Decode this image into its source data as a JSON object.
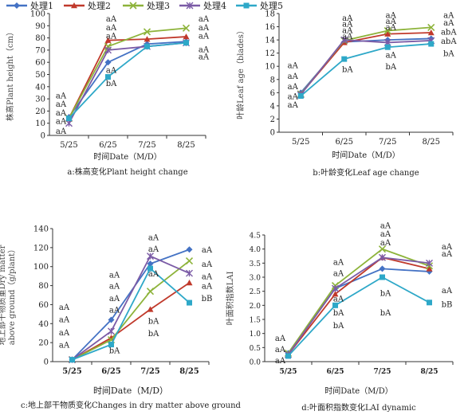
{
  "legend": {
    "series": [
      {
        "name": "处理1",
        "color": "#4472C4",
        "marker": "diamond"
      },
      {
        "name": "处理2",
        "color": "#C0392B",
        "marker": "triangle"
      },
      {
        "name": "处理3",
        "color": "#8DB33A",
        "marker": "x"
      },
      {
        "name": "处理4",
        "color": "#7B5BA6",
        "marker": "star"
      },
      {
        "name": "处理5",
        "color": "#2EA8C8",
        "marker": "square"
      }
    ]
  },
  "chart_data": [
    {
      "id": "a",
      "type": "line",
      "categories": [
        "5/25",
        "6/25",
        "7/25",
        "8/25"
      ],
      "xlabel": "时间Date（M/D）",
      "ylabel": "株高Plant height（cm）",
      "caption": "a:株高变化Plant height change",
      "ylim": [
        0,
        100
      ],
      "yticks": [
        0,
        10,
        20,
        30,
        40,
        50,
        60,
        70,
        80,
        90,
        100
      ],
      "series": [
        {
          "name": "处理1",
          "values": [
            15,
            60,
            75,
            77
          ]
        },
        {
          "name": "处理2",
          "values": [
            14,
            78,
            79,
            81
          ]
        },
        {
          "name": "处理3",
          "values": [
            14,
            73,
            85,
            88
          ]
        },
        {
          "name": "处理4",
          "values": [
            10,
            70,
            73,
            76
          ]
        },
        {
          "name": "处理5",
          "values": [
            14,
            48,
            73,
            76
          ]
        }
      ],
      "annotations": [
        {
          "text": "aA",
          "x": "5/25",
          "y": 33
        },
        {
          "text": "aA",
          "x": "5/25",
          "y": 26
        },
        {
          "text": "aA",
          "x": "5/25",
          "y": 19
        },
        {
          "text": "aA",
          "x": "5/25",
          "y": 12
        },
        {
          "text": "aA",
          "x": "5/25",
          "y": 4
        },
        {
          "text": "aA",
          "x": "6/25",
          "y": 96
        },
        {
          "text": "aA",
          "x": "6/25",
          "y": 89
        },
        {
          "text": "aA",
          "x": "6/25",
          "y": 82
        },
        {
          "text": "aA",
          "x": "6/25",
          "y": 54
        },
        {
          "text": "bA",
          "x": "6/25",
          "y": 43
        },
        {
          "text": "aA",
          "x": "8/25",
          "y": 96
        },
        {
          "text": "aA",
          "x": "8/25",
          "y": 89
        },
        {
          "text": "aA",
          "x": "8/25",
          "y": 82
        },
        {
          "text": "aA",
          "x": "8/25",
          "y": 71
        },
        {
          "text": "aA",
          "x": "8/25",
          "y": 65
        }
      ]
    },
    {
      "id": "b",
      "type": "line",
      "categories": [
        "5/25",
        "6/25",
        "7/25",
        "8/25"
      ],
      "xlabel": "时间Date（M/D）",
      "ylabel": "叶龄Leaf age（blades）",
      "caption": "b:叶龄变化Leaf age change",
      "ylim": [
        0,
        18
      ],
      "yticks": [
        0,
        2,
        4,
        6,
        8,
        10,
        12,
        14,
        16,
        18
      ],
      "series": [
        {
          "name": "处理1",
          "values": [
            6.0,
            13.7,
            14.0,
            14.2
          ]
        },
        {
          "name": "处理2",
          "values": [
            5.8,
            13.6,
            14.9,
            15.1
          ]
        },
        {
          "name": "处理3",
          "values": [
            5.8,
            13.9,
            15.4,
            15.9
          ]
        },
        {
          "name": "处理4",
          "values": [
            5.7,
            14.0,
            13.6,
            13.9
          ]
        },
        {
          "name": "处理5",
          "values": [
            5.5,
            11.1,
            12.9,
            13.4
          ]
        }
      ],
      "annotations": [
        {
          "text": "aA",
          "x": "5/25",
          "y": 10.2
        },
        {
          "text": "aA",
          "x": "5/25",
          "y": 8.6
        },
        {
          "text": "aA",
          "x": "5/25",
          "y": 7.0
        },
        {
          "text": "aA",
          "x": "5/25",
          "y": 5.5
        },
        {
          "text": "aA",
          "x": "5/25",
          "y": 4.2
        },
        {
          "text": "aA",
          "x": "6/25",
          "y": 17.4
        },
        {
          "text": "aA",
          "x": "6/25",
          "y": 16.5
        },
        {
          "text": "aA",
          "x": "6/25",
          "y": 15.5
        },
        {
          "text": "aA",
          "x": "6/25",
          "y": 14.6
        },
        {
          "text": "bA",
          "x": "6/25",
          "y": 9.6
        },
        {
          "text": "aA",
          "x": "7/25",
          "y": 17.8
        },
        {
          "text": "aA",
          "x": "7/25",
          "y": 16.9
        },
        {
          "text": "aA",
          "x": "7/25",
          "y": 16.0
        },
        {
          "text": "aA",
          "x": "7/25",
          "y": 11.8
        },
        {
          "text": "bA",
          "x": "7/25",
          "y": 10.0
        },
        {
          "text": "aA",
          "x": "8/25",
          "y": 17.8
        },
        {
          "text": "aA",
          "x": "8/25",
          "y": 16.7
        },
        {
          "text": "abA",
          "x": "8/25",
          "y": 15.3
        },
        {
          "text": "abA",
          "x": "8/25",
          "y": 13.9
        },
        {
          "text": "bA",
          "x": "8/25",
          "y": 12.0
        }
      ]
    },
    {
      "id": "c",
      "type": "line",
      "categories": [
        "5/25",
        "6/25",
        "7/25",
        "8/25"
      ],
      "xlabel": "时间Date（M/D）",
      "ylabel": "地上部干物质重Dry matter above ground（g/plant）",
      "caption": "c:地上部干物质变化Changes in dry matter above ground",
      "ylim": [
        0,
        140
      ],
      "yticks": [
        0,
        20,
        40,
        60,
        80,
        100,
        120,
        140
      ],
      "series": [
        {
          "name": "处理1",
          "values": [
            2,
            44,
            103,
            118
          ]
        },
        {
          "name": "处理2",
          "values": [
            2,
            25,
            55,
            83
          ]
        },
        {
          "name": "处理3",
          "values": [
            2,
            23,
            74,
            106
          ]
        },
        {
          "name": "处理4",
          "values": [
            2,
            32,
            111,
            93
          ]
        },
        {
          "name": "处理5",
          "values": [
            2,
            18,
            98,
            62
          ]
        }
      ],
      "annotations": [
        {
          "text": "aA",
          "x": "5/25",
          "y": 58
        },
        {
          "text": "aA",
          "x": "5/25",
          "y": 45
        },
        {
          "text": "aA",
          "x": "5/25",
          "y": 31
        },
        {
          "text": "aA",
          "x": "5/25",
          "y": 18
        },
        {
          "text": "aA",
          "x": "6/25",
          "y": 92
        },
        {
          "text": "aA",
          "x": "6/25",
          "y": 80
        },
        {
          "text": "aA",
          "x": "6/25",
          "y": 67
        },
        {
          "text": "aA",
          "x": "6/25",
          "y": 55
        },
        {
          "text": "bA",
          "x": "6/25",
          "y": 12
        },
        {
          "text": "aA",
          "x": "7/25",
          "y": 131
        },
        {
          "text": "aA",
          "x": "7/25",
          "y": 119
        },
        {
          "text": "aA",
          "x": "7/25",
          "y": 93
        },
        {
          "text": "bA",
          "x": "7/25",
          "y": 43
        },
        {
          "text": "bA",
          "x": "7/25",
          "y": 30
        },
        {
          "text": "aA",
          "x": "8/25",
          "y": 118
        },
        {
          "text": "aA",
          "x": "8/25",
          "y": 103
        },
        {
          "text": "aA",
          "x": "8/25",
          "y": 90
        },
        {
          "text": "aA",
          "x": "8/25",
          "y": 80
        },
        {
          "text": "bB",
          "x": "8/25",
          "y": 67
        }
      ]
    },
    {
      "id": "d",
      "type": "line",
      "categories": [
        "5/25",
        "6/25",
        "7/25",
        "8/25"
      ],
      "xlabel": "时间Date（M/D）",
      "ylabel": "叶面积指数LAI",
      "caption": "d:叶面积指数变化LAI dynamic",
      "ylim": [
        0,
        4.5
      ],
      "yticks": [
        "0.0",
        "0.5",
        "1.0",
        "1.5",
        "2.0",
        "2.5",
        "3.0",
        "3.5",
        "4.0",
        "4.5"
      ],
      "series": [
        {
          "name": "处理1",
          "values": [
            0.3,
            2.6,
            3.3,
            3.2
          ]
        },
        {
          "name": "处理2",
          "values": [
            0.25,
            2.4,
            3.7,
            3.3
          ]
        },
        {
          "name": "处理3",
          "values": [
            0.3,
            2.7,
            4.0,
            3.4
          ]
        },
        {
          "name": "处理4",
          "values": [
            0.25,
            2.6,
            3.7,
            3.5
          ]
        },
        {
          "name": "处理5",
          "values": [
            0.2,
            2.0,
            3.0,
            2.1
          ]
        }
      ],
      "annotations": [
        {
          "text": "aA",
          "x": "5/25",
          "y": 0.85
        },
        {
          "text": "aA",
          "x": "5/25",
          "y": 0.45
        },
        {
          "text": "aA",
          "x": "5/25",
          "y": 0.05
        },
        {
          "text": "aA",
          "x": "6/25",
          "y": 3.55
        },
        {
          "text": "aA",
          "x": "6/25",
          "y": 3.15
        },
        {
          "text": "aA",
          "x": "6/25",
          "y": 2.25
        },
        {
          "text": "bA",
          "x": "6/25",
          "y": 1.75
        },
        {
          "text": "bA",
          "x": "6/25",
          "y": 1.3
        },
        {
          "text": "aA",
          "x": "7/25",
          "y": 4.85
        },
        {
          "text": "aA",
          "x": "7/25",
          "y": 4.55
        },
        {
          "text": "aA",
          "x": "7/25",
          "y": 4.25
        },
        {
          "text": "bA",
          "x": "7/25",
          "y": 2.45
        },
        {
          "text": "bA",
          "x": "7/25",
          "y": 1.75
        },
        {
          "text": "aA",
          "x": "8/25",
          "y": 4.1
        },
        {
          "text": "aA",
          "x": "8/25",
          "y": 3.85
        },
        {
          "text": "aA",
          "x": "8/25",
          "y": 2.55
        },
        {
          "text": "bB",
          "x": "8/25",
          "y": 2.05
        }
      ]
    }
  ]
}
